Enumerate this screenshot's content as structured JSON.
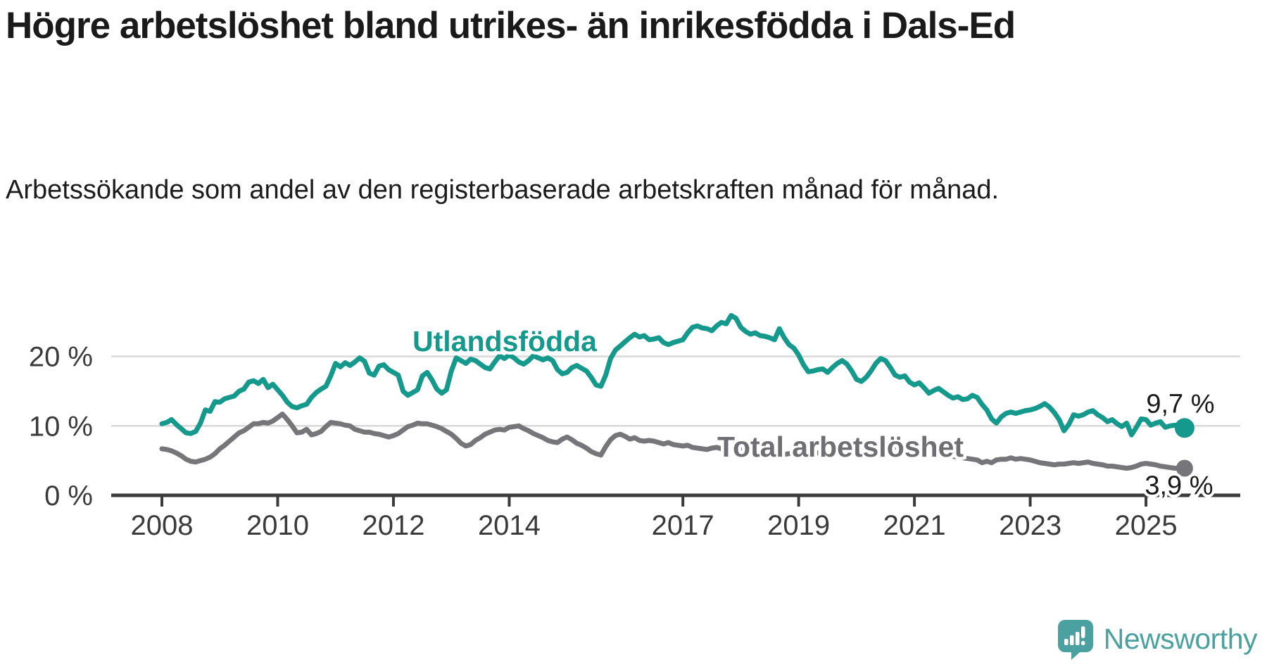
{
  "title": "Högre arbetslöshet bland utrikes- än inrikesfödda i Dals-Ed",
  "subtitle": "Arbetssökande som andel av den registerbaserade arbetskraften månad för månad.",
  "logo": {
    "text": "Newsworthy"
  },
  "colors": {
    "teal_series": "#14998c",
    "gray_series": "#76767a",
    "gray_label": "#6f6f73",
    "value_label": "#1a1a1a",
    "axis_text": "#3a3a3a",
    "axis_line": "#3b3b3b",
    "grid_line": "#d9d9d9",
    "logo_teal": "#4aa1a0"
  },
  "chart_data": {
    "type": "line",
    "unit": "%",
    "x_start_year": 2008,
    "points_per_year": 12,
    "ylim": [
      0,
      28
    ],
    "grid": "horizontal",
    "legend": "inline-labels",
    "yticks": [
      {
        "value": 0,
        "label": "0 %"
      },
      {
        "value": 10,
        "label": "10 %"
      },
      {
        "value": 20,
        "label": "20 %"
      }
    ],
    "xticks": [
      2008,
      2010,
      2012,
      2014,
      2017,
      2019,
      2021,
      2023,
      2025
    ],
    "series": [
      {
        "name": "Utlandsfödda",
        "end_label": "9,7 %",
        "end_value": 9.7,
        "values": [
          10.3,
          10.5,
          10.9,
          10.2,
          9.6,
          9.0,
          8.9,
          9.2,
          10.4,
          12.3,
          12.1,
          13.5,
          13.4,
          13.9,
          14.1,
          14.3,
          15.0,
          15.3,
          16.3,
          16.5,
          16.1,
          16.7,
          15.5,
          16.0,
          15.2,
          14.4,
          13.4,
          12.8,
          12.6,
          12.9,
          13.1,
          14.1,
          14.8,
          15.3,
          15.7,
          17.2,
          19.0,
          18.5,
          19.1,
          18.7,
          19.2,
          19.8,
          19.3,
          17.6,
          17.3,
          18.6,
          18.8,
          18.1,
          17.7,
          17.3,
          15.0,
          14.4,
          14.8,
          15.2,
          17.2,
          17.7,
          16.6,
          15.3,
          14.7,
          15.2,
          17.9,
          19.8,
          19.4,
          19.0,
          19.6,
          19.4,
          18.9,
          18.4,
          18.2,
          19.2,
          20.1,
          19.7,
          20.2,
          19.8,
          19.2,
          18.9,
          19.4,
          20.1,
          19.8,
          19.5,
          19.8,
          19.4,
          18.1,
          17.5,
          17.7,
          18.4,
          18.7,
          18.3,
          17.9,
          17.0,
          15.9,
          15.7,
          17.3,
          19.7,
          20.9,
          21.5,
          22.1,
          22.7,
          23.2,
          22.8,
          23.0,
          22.4,
          22.5,
          22.7,
          22.0,
          21.7,
          22.0,
          22.2,
          22.4,
          23.4,
          24.2,
          24.4,
          24.1,
          24.0,
          23.7,
          24.4,
          24.9,
          24.7,
          25.9,
          25.5,
          24.2,
          23.6,
          23.2,
          23.4,
          23.0,
          22.9,
          22.7,
          22.4,
          24.0,
          22.7,
          21.7,
          21.2,
          20.2,
          18.8,
          17.8,
          17.9,
          18.1,
          18.2,
          17.7,
          18.4,
          19.0,
          19.4,
          18.9,
          17.9,
          16.7,
          16.4,
          17.0,
          17.9,
          19.0,
          19.7,
          19.4,
          18.4,
          17.3,
          17.0,
          17.2,
          16.3,
          15.9,
          16.2,
          15.5,
          14.7,
          15.1,
          15.4,
          14.9,
          14.4,
          14.0,
          14.2,
          13.8,
          13.9,
          14.4,
          14.1,
          13.1,
          12.3,
          11.0,
          10.4,
          11.3,
          11.8,
          12.0,
          11.8,
          12.0,
          12.2,
          12.3,
          12.5,
          12.8,
          13.2,
          12.7,
          11.9,
          10.9,
          9.3,
          10.2,
          11.6,
          11.4,
          11.6,
          12.0,
          12.2,
          11.6,
          11.2,
          10.6,
          10.9,
          10.3,
          9.9,
          10.4,
          8.7,
          9.8,
          11.0,
          10.9,
          10.1,
          10.4,
          10.6,
          9.8,
          10.0,
          10.1,
          9.9,
          9.7
        ]
      },
      {
        "name": "Total arbetslöshet",
        "end_label": "3,9 %",
        "end_value": 3.9,
        "values": [
          6.7,
          6.6,
          6.4,
          6.1,
          5.7,
          5.2,
          4.9,
          4.8,
          5.0,
          5.2,
          5.5,
          6.0,
          6.7,
          7.2,
          7.8,
          8.4,
          9.0,
          9.3,
          9.8,
          10.3,
          10.3,
          10.5,
          10.4,
          10.7,
          11.2,
          11.7,
          10.9,
          10.0,
          9.0,
          9.1,
          9.5,
          8.7,
          8.9,
          9.2,
          9.9,
          10.5,
          10.4,
          10.3,
          10.1,
          10.0,
          9.5,
          9.3,
          9.1,
          9.1,
          8.9,
          8.8,
          8.6,
          8.4,
          8.6,
          8.9,
          9.4,
          9.9,
          10.1,
          10.4,
          10.3,
          10.3,
          10.1,
          9.9,
          9.6,
          9.2,
          8.8,
          8.2,
          7.5,
          7.1,
          7.3,
          7.9,
          8.3,
          8.8,
          9.1,
          9.4,
          9.5,
          9.4,
          9.8,
          9.9,
          10.0,
          9.6,
          9.3,
          8.9,
          8.6,
          8.3,
          7.9,
          7.7,
          7.6,
          8.1,
          8.4,
          8.0,
          7.5,
          7.2,
          6.8,
          6.3,
          6.0,
          5.8,
          7.0,
          8.0,
          8.6,
          8.8,
          8.5,
          8.1,
          8.3,
          7.9,
          7.8,
          7.9,
          7.8,
          7.6,
          7.4,
          7.6,
          7.3,
          7.2,
          7.1,
          7.2,
          6.9,
          6.8,
          6.7,
          6.6,
          6.8,
          6.9,
          6.7,
          6.6,
          6.5,
          6.6,
          6.7,
          6.6,
          6.4,
          6.3,
          6.4,
          6.2,
          6.1,
          6.2,
          6.0,
          5.9,
          6.0,
          6.1,
          6.2,
          6.0,
          5.9,
          6.0,
          6.1,
          6.0,
          6.2,
          6.3,
          6.2,
          6.4,
          6.3,
          6.4,
          6.5,
          6.6,
          6.9,
          7.2,
          7.4,
          7.3,
          7.2,
          7.0,
          6.9,
          6.8,
          6.7,
          6.6,
          6.5,
          6.4,
          6.2,
          6.1,
          6.0,
          5.9,
          5.8,
          5.7,
          5.6,
          5.5,
          5.4,
          5.3,
          5.2,
          5.1,
          4.7,
          4.9,
          4.7,
          5.1,
          5.2,
          5.2,
          5.4,
          5.2,
          5.3,
          5.2,
          5.1,
          4.9,
          4.7,
          4.6,
          4.5,
          4.4,
          4.5,
          4.5,
          4.6,
          4.7,
          4.6,
          4.7,
          4.8,
          4.6,
          4.5,
          4.4,
          4.2,
          4.2,
          4.1,
          4.0,
          3.9,
          4.0,
          4.2,
          4.5,
          4.6,
          4.5,
          4.4,
          4.2,
          4.1,
          4.0,
          3.9,
          3.9,
          3.9
        ]
      }
    ]
  }
}
